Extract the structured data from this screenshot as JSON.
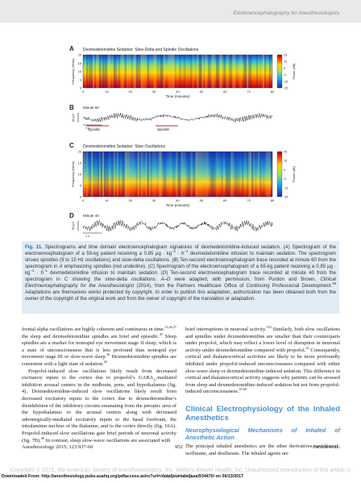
{
  "header": {
    "running_title": "Electroencephalography for Anesthesiologists"
  },
  "figure": {
    "panels": [
      {
        "label": "A",
        "title": "Dexmedetomidine Sedation: Slow-Delta and Spindle Oscillations",
        "y_axis_label": "Frequency (Hertz)",
        "y_ticks": [
          20,
          15,
          10,
          5,
          0
        ],
        "x_ticks": [
          0,
          10,
          20,
          30,
          40,
          50,
          60,
          70,
          80
        ],
        "x_axis_label": "Time (minutes)",
        "colorbar_label": "Power (dB)",
        "colorbar_ticks": [
          25,
          15,
          5,
          -5,
          -15,
          -25
        ]
      },
      {
        "label": "B",
        "title": "Minute 60",
        "scale_voltage": "50 μV",
        "scale_time": "1 s",
        "annotations": [
          "Spindle",
          "Spindle"
        ]
      },
      {
        "label": "C",
        "title": "Dexmedetomidine Sedation: Slow Oscillations",
        "y_axis_label": "Frequency (Hertz)",
        "y_ticks": [
          20,
          15,
          10,
          5,
          0
        ],
        "x_ticks": [
          0,
          10,
          20,
          30,
          40,
          50,
          60,
          70,
          80
        ],
        "x_axis_label": "Time (minutes)",
        "colorbar_label": "Power (dB)",
        "colorbar_ticks": [
          25,
          15,
          5,
          -5,
          -15,
          -25
        ]
      },
      {
        "label": "D",
        "title": "Minute 40",
        "scale_voltage": "50 μV",
        "scale_time": "1 s"
      }
    ]
  },
  "caption": [
    {
      "b": "Fig. 11."
    },
    {
      "t": " Spectrograms and time domain electroencephalogram signatures of dexmedetomidine-induced sedation. ("
    },
    {
      "i": "A"
    },
    {
      "t": ") Spectrogram of the electroencephalogram of a 59-kg patient receiving a 0.85 μg · kg"
    },
    {
      "sup": "−1"
    },
    {
      "t": " · h"
    },
    {
      "sup": "−1"
    },
    {
      "t": " dexmedetomidine infusion to maintain sedation. The spectrogram shows spindles (9 to 15 Hz oscillations) and slow-delta oscillations. ("
    },
    {
      "i": "B"
    },
    {
      "t": ") Ten-second electroencephalogram trace recorded at minute 60 from the spectrogram in "
    },
    {
      "i": "A"
    },
    {
      "t": " emphasizing spindles (red underline). ("
    },
    {
      "i": "C"
    },
    {
      "t": ") Spectrogram of the electroencephalogram of a 65-kg patient receiving a 0.85 μg · kg"
    },
    {
      "sup": "−1"
    },
    {
      "t": " · h"
    },
    {
      "sup": "−1"
    },
    {
      "t": " dexmedetomidine infusion to maintain sedation. ("
    },
    {
      "i": "D"
    },
    {
      "t": ") Ten-second electroencephalogram trace recorded at minute 40 from the spectrogram in "
    },
    {
      "i": "C"
    },
    {
      "t": " showing the slow-delta oscillations. "
    },
    {
      "i": "A–D"
    },
    {
      "t": " were adapted, with permission, from Purdon and Brown, "
    },
    {
      "i": "Clinical Electroencephalography for the Anesthesiologist"
    },
    {
      "t": " (2014), from the Partners Healthcare Office of Continuing Professional Development."
    },
    {
      "sup": "48"
    },
    {
      "t": " Adaptations are themselves works protected by copyright. In order to publish this adaptation, authorization has been obtained both from the owner of the copyright of the original work and from the owner of copyright of the translation or adaptation."
    }
  ],
  "body": {
    "left": [
      [
        {
          "t": "frontal alpha oscillations are highly coherent and continuous in time."
        },
        {
          "sup": "13,26,27"
        },
        {
          "t": " the sleep and dexmedetomidine spindles are brief and episodic."
        },
        {
          "sup": "45"
        },
        {
          "t": " Sleep spindles are a marker for nonrapid eye movement stage II sleep, which is a state of unconsciousness that is less profound than nonrapid eye movement stage III or slow-wave sleep."
        },
        {
          "sup": "46"
        },
        {
          "t": " Dexmedetomidine spindles are consistent with a light state of sedation."
        },
        {
          "sup": "45"
        }
      ],
      [
        {
          "t": "Propofol-induced slow oscillations likely result from decreased excitatory inputs to the cortex due to propofol’s GABA"
        },
        {
          "sub": "A"
        },
        {
          "t": "-mediated inhibition arousal centers in the midbrain, pons, and hypothalamus (fig. 4). Dexmedetomidine-induced slow oscillations likely result from decreased excitatory inputs to the cortex due to dexmedetomidine’s disinhibition of the inhibitory circuits emanating from the preoptic area of the hypothalamus to the arousal centers along with decreased adrenergically-mediated excitatory inputs to the basal forebrain, the intralaminar nucleus of the thalamus, and to the cortex directly (fig. 10A). Propofol-induced slow oscillations gate brief periods of neuronal activity (fig. 7B)."
        },
        {
          "sup": "46"
        },
        {
          "t": " In contrast, sleep slow-wave oscillations are associated with"
        }
      ]
    ],
    "right": [
      [
        {
          "t": "brief interruptions in neuronal activity."
        },
        {
          "sup": "118"
        },
        {
          "t": " Similarly, both slow oscillations and spindles under dexmedetomidine are smaller than their counterparts under propofol, which may reflect a lower level of disruption in neuronal activity under dexmedetomidine compared with propofol."
        },
        {
          "sup": "45"
        },
        {
          "t": " Consequently, cortical and thalamocortical activities are likely to be more profoundly inhibited under propofol-induced unconsciousness compared with either slow-wave sleep or dexmedetomidine-induced sedation. This difference in cortical and thalamocortical activity suggests why patients can be aroused from sleep and dexmedetomidine-induced sedation but not from propofol-induced unconsciousness."
        },
        {
          "sup": "45,60"
        }
      ]
    ],
    "heading": "Clinical Electrophysiology of the Inhaled Anesthetics",
    "subheading": "Neurophysiological Mechanisms of Inhaled of Anesthetic Action",
    "right_after": [
      [
        {
          "t": "The principal inhaled anesthetics are the ether derivatives sevoflurane, isoflurane, and desflurane. The inhaled agents are"
        }
      ]
    ]
  },
  "footer": {
    "journal": "Anesthesiology 2015; 123:937-60",
    "page": "952",
    "authors": "Purdon et al."
  },
  "watermark": "Copyright © 2015, the American Society of Anesthesiologists, Inc. Wolters Kluwer Health, Inc. Unauthorized reproduction of this article is prohibited.",
  "download": "Downloaded From: http://anesthesiology.pubs.asahq.org/pdfaccess.ashx?url=/data/journals/jasa/934470/ on 06/13/2017"
}
